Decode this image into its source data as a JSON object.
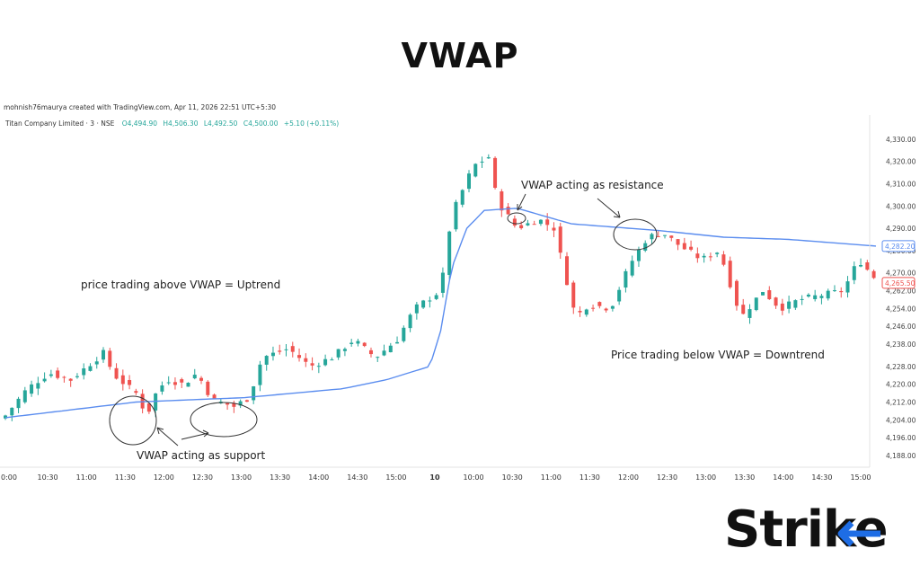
{
  "page_title": "VWAP",
  "logo_text": "Strike",
  "colors": {
    "up": "#26a69a",
    "down": "#ef5350",
    "vwap": "#5b8def",
    "logo_accent": "#1e6de5",
    "text": "#111111"
  },
  "watermark": "mohnish76maurya created with TradingView.com, Apr 11, 2026 22:51 UTC+5:30",
  "ohlc": {
    "symbol": "Titan Company Limited · 3 · NSE",
    "o": "O4,494.90",
    "h": "H4,506.30",
    "l": "L4,492.50",
    "c": "C4,500.00",
    "chg": "+5.10 (+0.11%)"
  },
  "annotations": {
    "uptrend": "price trading above VWAP = Uptrend",
    "downtrend": "Price trading below VWAP = Downtrend",
    "support": "VWAP acting as support",
    "resistance": "VWAP acting as resistance"
  },
  "chart_data": {
    "type": "candlestick",
    "y_ticks": [
      4188,
      4196,
      4204,
      4212,
      4220,
      4228,
      4238,
      4246,
      4254,
      4262,
      4270,
      4280,
      4290,
      4300,
      4310,
      4320,
      4330
    ],
    "y_tick_labels": [
      "4,188.00",
      "4,196.00",
      "4,204.00",
      "4,212.00",
      "4,220.00",
      "4,228.00",
      "4,238.00",
      "4,246.00",
      "4,254.00",
      "4,262.00",
      "4,270.00",
      "4,280.00",
      "4,290.00",
      "4,300.00",
      "4,310.00",
      "4,320.00",
      "4,330.00"
    ],
    "ylim": [
      4186,
      4336
    ],
    "x_ticks": [
      "0:00",
      "10:30",
      "11:00",
      "11:30",
      "12:00",
      "12:30",
      "13:00",
      "13:30",
      "14:00",
      "14:30",
      "15:00",
      "10",
      "10:00",
      "10:30",
      "11:00",
      "11:30",
      "12:00",
      "12:30",
      "13:00",
      "13:30",
      "14:00",
      "14:30",
      "15:00"
    ],
    "price_labels": [
      {
        "name": "VWAP",
        "value": "4,282.20"
      },
      {
        "name": "Last",
        "value": "4,265.50"
      }
    ],
    "anchors_close": [
      [
        0,
        4206
      ],
      [
        10,
        4218
      ],
      [
        20,
        4225
      ],
      [
        30,
        4222
      ],
      [
        40,
        4230
      ],
      [
        45,
        4234
      ],
      [
        50,
        4224
      ],
      [
        60,
        4216
      ],
      [
        65,
        4206
      ],
      [
        70,
        4218
      ],
      [
        75,
        4222
      ],
      [
        82,
        4220
      ],
      [
        88,
        4225
      ],
      [
        95,
        4213
      ],
      [
        105,
        4210
      ],
      [
        112,
        4214
      ],
      [
        118,
        4232
      ],
      [
        130,
        4236
      ],
      [
        140,
        4228
      ],
      [
        150,
        4232
      ],
      [
        160,
        4240
      ],
      [
        170,
        4232
      ],
      [
        180,
        4240
      ],
      [
        188,
        4254
      ],
      [
        200,
        4262
      ],
      [
        205,
        4296
      ],
      [
        215,
        4318
      ],
      [
        222,
        4322
      ],
      [
        226,
        4302
      ],
      [
        235,
        4290
      ],
      [
        245,
        4294
      ],
      [
        252,
        4290
      ],
      [
        262,
        4250
      ],
      [
        268,
        4256
      ],
      [
        278,
        4254
      ],
      [
        287,
        4274
      ],
      [
        295,
        4286
      ],
      [
        302,
        4288
      ],
      [
        310,
        4282
      ],
      [
        320,
        4276
      ],
      [
        328,
        4280
      ],
      [
        338,
        4250
      ],
      [
        348,
        4262
      ],
      [
        356,
        4254
      ],
      [
        365,
        4258
      ],
      [
        375,
        4260
      ],
      [
        385,
        4262
      ],
      [
        392,
        4276
      ],
      [
        400,
        4267
      ]
    ],
    "vwap_anchors": [
      [
        0,
        4205
      ],
      [
        60,
        4212
      ],
      [
        110,
        4214
      ],
      [
        155,
        4218
      ],
      [
        175,
        4222
      ],
      [
        195,
        4228
      ],
      [
        200,
        4244
      ],
      [
        205,
        4272
      ],
      [
        212,
        4290
      ],
      [
        220,
        4298
      ],
      [
        235,
        4299
      ],
      [
        260,
        4292
      ],
      [
        300,
        4289
      ],
      [
        330,
        4286
      ],
      [
        360,
        4285
      ],
      [
        400,
        4282
      ]
    ]
  }
}
